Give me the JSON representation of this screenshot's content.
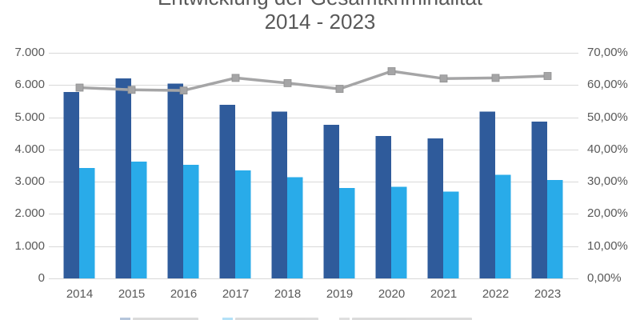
{
  "title": {
    "line1": "Entwicklung der Gesamtkriminalität",
    "line2": "2014 - 2023"
  },
  "colors": {
    "bar_dark_blue": "#2F5B9B",
    "bar_light_blue": "#29ABE9",
    "trend_line_gray": "#A5A5A6",
    "gridline": "#D9D9D9",
    "axis_text": "#595959",
    "background": "#FFFFFF"
  },
  "chart_data": {
    "type": "bar",
    "subtype": "grouped bars with secondary-axis line (combo)",
    "title": "Entwicklung der Gesamtkriminalität",
    "subtitle": "2014 - 2023",
    "categories": [
      "2014",
      "2015",
      "2016",
      "2017",
      "2018",
      "2019",
      "2020",
      "2021",
      "2022",
      "2023"
    ],
    "series": [
      {
        "name": "dark-blue-bars",
        "type": "bar",
        "axis": "left",
        "color": "#2F5B9B",
        "values": [
          5780,
          6210,
          6050,
          5390,
          5180,
          4760,
          4420,
          4340,
          5180,
          4860
        ]
      },
      {
        "name": "light-blue-bars",
        "type": "bar",
        "axis": "left",
        "color": "#29ABE9",
        "values": [
          3420,
          3630,
          3530,
          3350,
          3140,
          2800,
          2840,
          2690,
          3220,
          3050
        ]
      },
      {
        "name": "gray-line-percent",
        "type": "line",
        "axis": "right",
        "color": "#A5A5A6",
        "marker": "square",
        "values": [
          59.2,
          58.5,
          58.3,
          62.2,
          60.6,
          58.8,
          64.3,
          62.0,
          62.2,
          62.8
        ]
      }
    ],
    "axes": {
      "left": {
        "min": 0,
        "max": 7000,
        "ticks": [
          "7.000",
          "6.000",
          "5.000",
          "4.000",
          "3.000",
          "2.000",
          "1.000",
          "0"
        ]
      },
      "right": {
        "min": 0,
        "max": 70,
        "ticks": [
          "70,00%",
          "60,00%",
          "50,00%",
          "40,00%",
          "30,00%",
          "20,00%",
          "10,00%",
          "0,00%"
        ]
      },
      "x": {
        "ticks": [
          "2014",
          "2015",
          "2016",
          "2017",
          "2018",
          "2019",
          "2020",
          "2021",
          "2022",
          "2023"
        ]
      }
    },
    "grid": true,
    "legend_position": "bottom",
    "legend_cut_off_at_bottom_edge": true,
    "legend_swatch_colors": [
      "#2F5B9B",
      "#29ABE9",
      "#A5A5A6"
    ]
  }
}
